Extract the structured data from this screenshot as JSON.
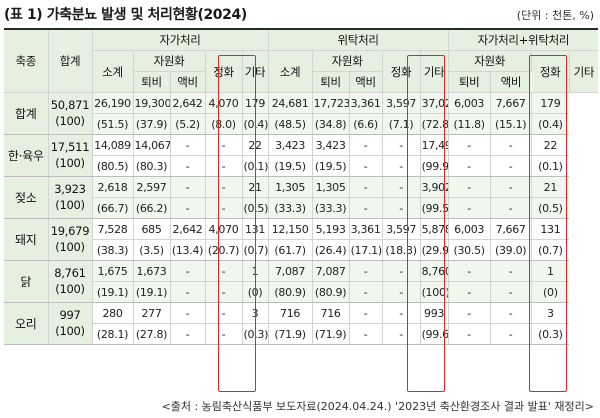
{
  "title": "(표 1) 가축분뇨 발생 및 처리현황(2024)",
  "unit": "(단위 : 천톤, %)",
  "headers": {
    "species": "축종",
    "total": "합계",
    "group_self": "자가처리",
    "group_consign": "위탁처리",
    "group_combined": "자가처리+위탁처리",
    "subtotal": "소계",
    "resource": "자원화",
    "compost": "퇴비",
    "liquid": "액비",
    "purify": "정화",
    "other": "기타"
  },
  "rows": [
    {
      "name": "합계",
      "total": "50,871",
      "total_pct": "(100)",
      "values": [
        "26,190",
        "19,300",
        "2,642",
        "4,070",
        "179",
        "24,681",
        "17,723",
        "3,361",
        "3,597",
        "-",
        "37,023",
        "6,003",
        "7,667",
        "179"
      ],
      "pcts": [
        "(51.5)",
        "(37.9)",
        "(5.2)",
        "(8.0)",
        "(0.4)",
        "(48.5)",
        "(34.8)",
        "(6.6)",
        "(7.1)",
        "-",
        "(72.8)",
        "(11.8)",
        "(15.1)",
        "(0.4)"
      ]
    },
    {
      "name": "한·육우",
      "total": "17,511",
      "total_pct": "(100)",
      "values": [
        "14,089",
        "14,067",
        "-",
        "-",
        "22",
        "3,423",
        "3,423",
        "-",
        "-",
        "-",
        "17,490",
        "-",
        "-",
        "22"
      ],
      "pcts": [
        "(80.5)",
        "(80.3)",
        "-",
        "-",
        "(0.1)",
        "(19.5)",
        "(19.5)",
        "-",
        "-",
        "-",
        "(99.9)",
        "-",
        "-",
        "(0.1)"
      ]
    },
    {
      "name": "젖소",
      "total": "3,923",
      "total_pct": "(100)",
      "values": [
        "2,618",
        "2,597",
        "-",
        "-",
        "21",
        "1,305",
        "1,305",
        "-",
        "-",
        "-",
        "3,902",
        "-",
        "-",
        "21"
      ],
      "pcts": [
        "(66.7)",
        "(66.2)",
        "-",
        "-",
        "(0.5)",
        "(33.3)",
        "(33.3)",
        "-",
        "-",
        "-",
        "(99.5)",
        "-",
        "-",
        "(0.5)"
      ]
    },
    {
      "name": "돼지",
      "total": "19,679",
      "total_pct": "(100)",
      "values": [
        "7,528",
        "685",
        "2,642",
        "4,070",
        "131",
        "12,150",
        "5,193",
        "3,361",
        "3,597",
        "-",
        "5,878",
        "6,003",
        "7,667",
        "131"
      ],
      "pcts": [
        "(38.3)",
        "(3.5)",
        "(13.4)",
        "(20.7)",
        "(0.7)",
        "(61.7)",
        "(26.4)",
        "(17.1)",
        "(18.3)",
        "-",
        "(29.9)",
        "(30.5)",
        "(39.0)",
        "(0.7)"
      ]
    },
    {
      "name": "닭",
      "total": "8,761",
      "total_pct": "(100)",
      "values": [
        "1,675",
        "1,673",
        "-",
        "-",
        "1",
        "7,087",
        "7,087",
        "-",
        "-",
        "-",
        "8,760",
        "-",
        "-",
        "1"
      ],
      "pcts": [
        "(19.1)",
        "(19.1)",
        "-",
        "-",
        "(0)",
        "(80.9)",
        "(80.9)",
        "-",
        "-",
        "-",
        "(100)",
        "-",
        "-",
        "(0)"
      ]
    },
    {
      "name": "오리",
      "total": "997",
      "total_pct": "(100)",
      "values": [
        "280",
        "277",
        "-",
        "-",
        "3",
        "716",
        "716",
        "-",
        "-",
        "-",
        "993",
        "-",
        "-",
        "3"
      ],
      "pcts": [
        "(28.1)",
        "(27.8)",
        "-",
        "-",
        "(0.3)",
        "(71.9)",
        "(71.9)",
        "-",
        "-",
        "-",
        "(99.6)",
        "-",
        "-",
        "(0.3)"
      ]
    }
  ],
  "source": "<출처 : 농림축산식품부 보도자료(2024.04.24.) '2023년 축산환경조사 결과 발표' 재정리>",
  "colors": {
    "header_bg": "#e6f0e1",
    "highlight_box": "#d62b2b",
    "row_highlight": "#f1f7ee"
  }
}
